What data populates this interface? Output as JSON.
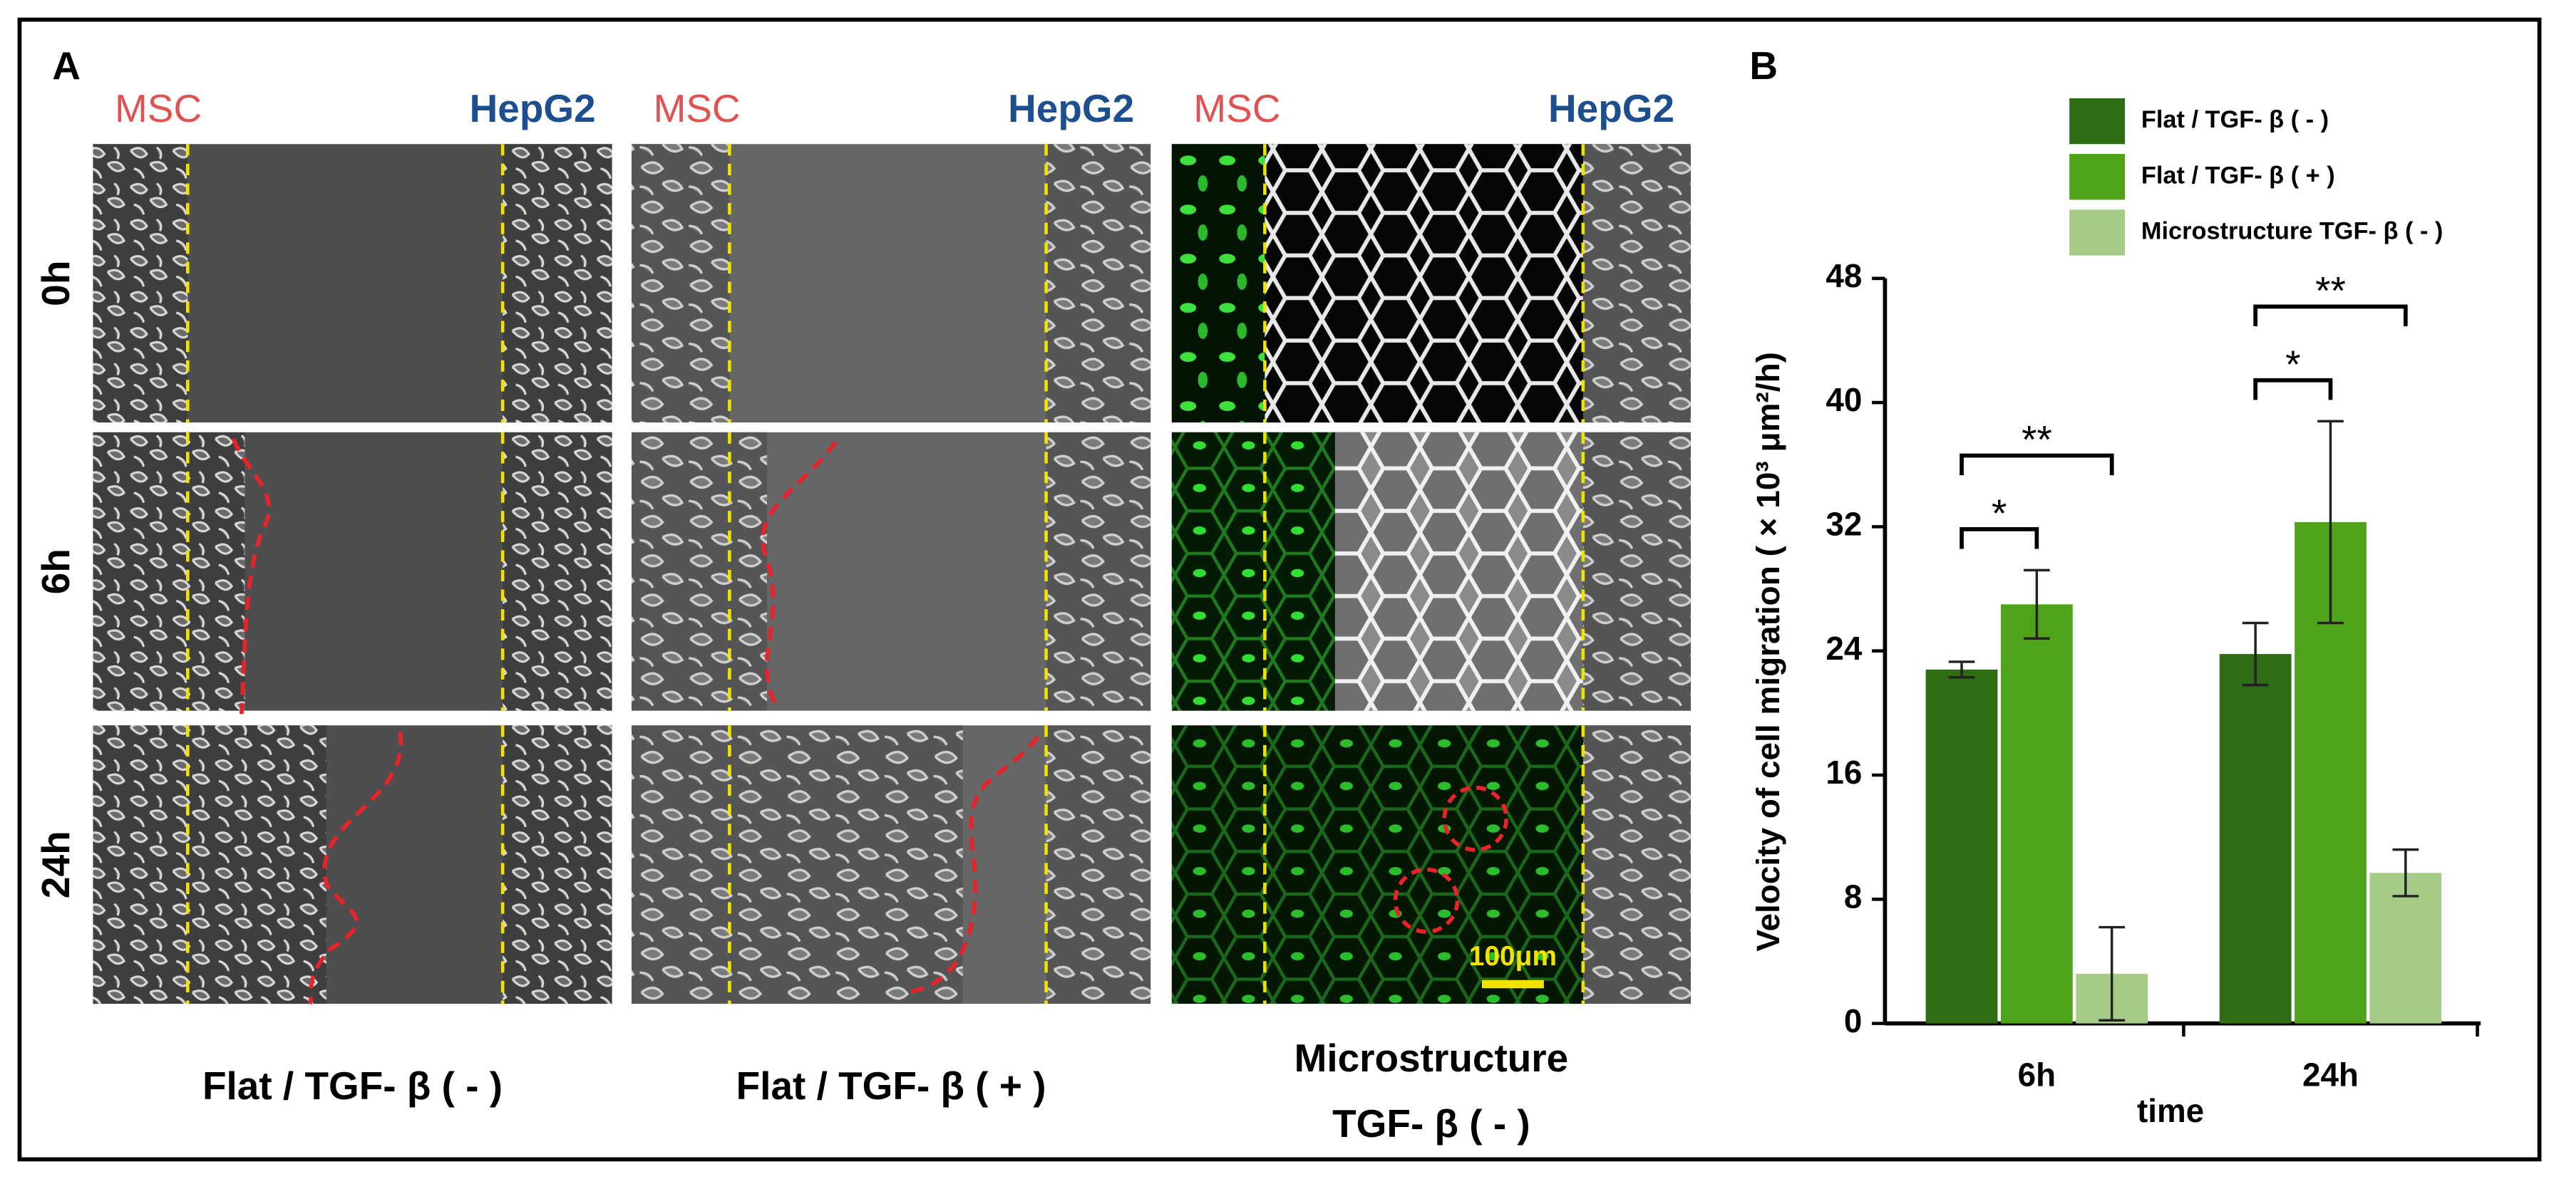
{
  "panel_a": {
    "label": "A",
    "columns": [
      {
        "left": "MSC",
        "right": "HepG2",
        "caption": [
          "Flat / TGF- β ( - )"
        ]
      },
      {
        "left": "MSC",
        "right": "HepG2",
        "caption": [
          "Flat / TGF- β ( + )"
        ]
      },
      {
        "left": "MSC",
        "right": "HepG2",
        "caption": [
          "Microstructure",
          "TGF- β ( - )"
        ]
      }
    ],
    "rows": [
      "0h",
      "6h",
      "24h"
    ],
    "scale_bar": "100μm"
  },
  "chart_data": {
    "type": "bar",
    "panel_label": "B",
    "ylabel": "Velocity of  cell migration ( × 10³ μm²/h)",
    "xlabel": "time",
    "categories": [
      "6h",
      "24h"
    ],
    "series": [
      {
        "name": "Flat / TGF- β ( - )",
        "color": "#2f6d14",
        "values": [
          22.8,
          23.8
        ],
        "errors": [
          0.5,
          2.0
        ]
      },
      {
        "name": "Flat / TGF- β ( + )",
        "color": "#4fa31a",
        "values": [
          27,
          32.3
        ],
        "errors": [
          2.2,
          6.5
        ]
      },
      {
        "name": "Microstructure TGF- β ( - )",
        "color": "#a4cc86",
        "values": [
          3.2,
          9.7
        ],
        "errors": [
          3.0,
          1.5
        ]
      }
    ],
    "significance": [
      [
        "*",
        "**"
      ],
      [
        "*",
        "**"
      ]
    ],
    "ylim": [
      0,
      48
    ],
    "yticks": [
      0,
      8,
      16,
      24,
      32,
      40,
      48
    ],
    "legend": "top-right",
    "grid": false
  }
}
